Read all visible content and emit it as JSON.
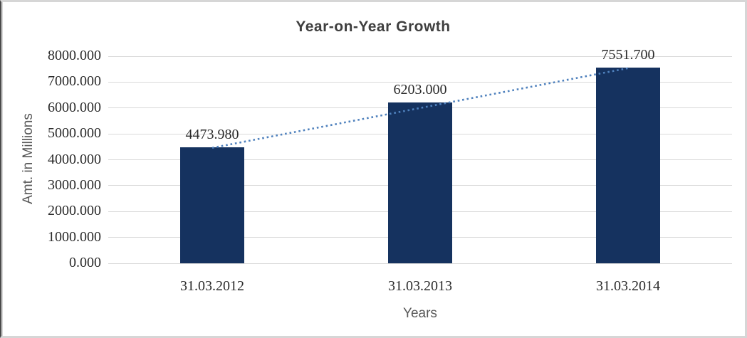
{
  "window": {
    "background": "#ffffff",
    "frame_border_color": "#d6d6d6",
    "frame_left_edge_color": "#4b4b4b"
  },
  "chart_data": {
    "type": "bar",
    "title": "Year-on-Year Growth",
    "xlabel": "Years",
    "ylabel": "Amt. in Millions",
    "categories": [
      "31.03.2012",
      "31.03.2013",
      "31.03.2014"
    ],
    "series": [
      {
        "name": "Amt. in Millions",
        "values": [
          4473.98,
          6203.0,
          7551.7
        ],
        "data_labels": [
          "4473.980",
          "6203.000",
          "7551.700"
        ]
      }
    ],
    "ylim": [
      0,
      8000
    ],
    "ytick_step": 1000,
    "ytick_labels": [
      "0.000",
      "1000.000",
      "2000.000",
      "3000.000",
      "4000.000",
      "5000.000",
      "6000.000",
      "7000.000",
      "8000.000"
    ],
    "grid": true,
    "legend": "none",
    "trendline": {
      "type": "linear",
      "style": "dotted",
      "color": "#4f81bd"
    },
    "colors": {
      "bar": "#15325f",
      "gridline": "#d9d9d9",
      "title_text": "#3f3f3f",
      "axis_title_text": "#595959",
      "tick_text": "#2b2b2b",
      "trendline": "#4f81bd"
    }
  }
}
